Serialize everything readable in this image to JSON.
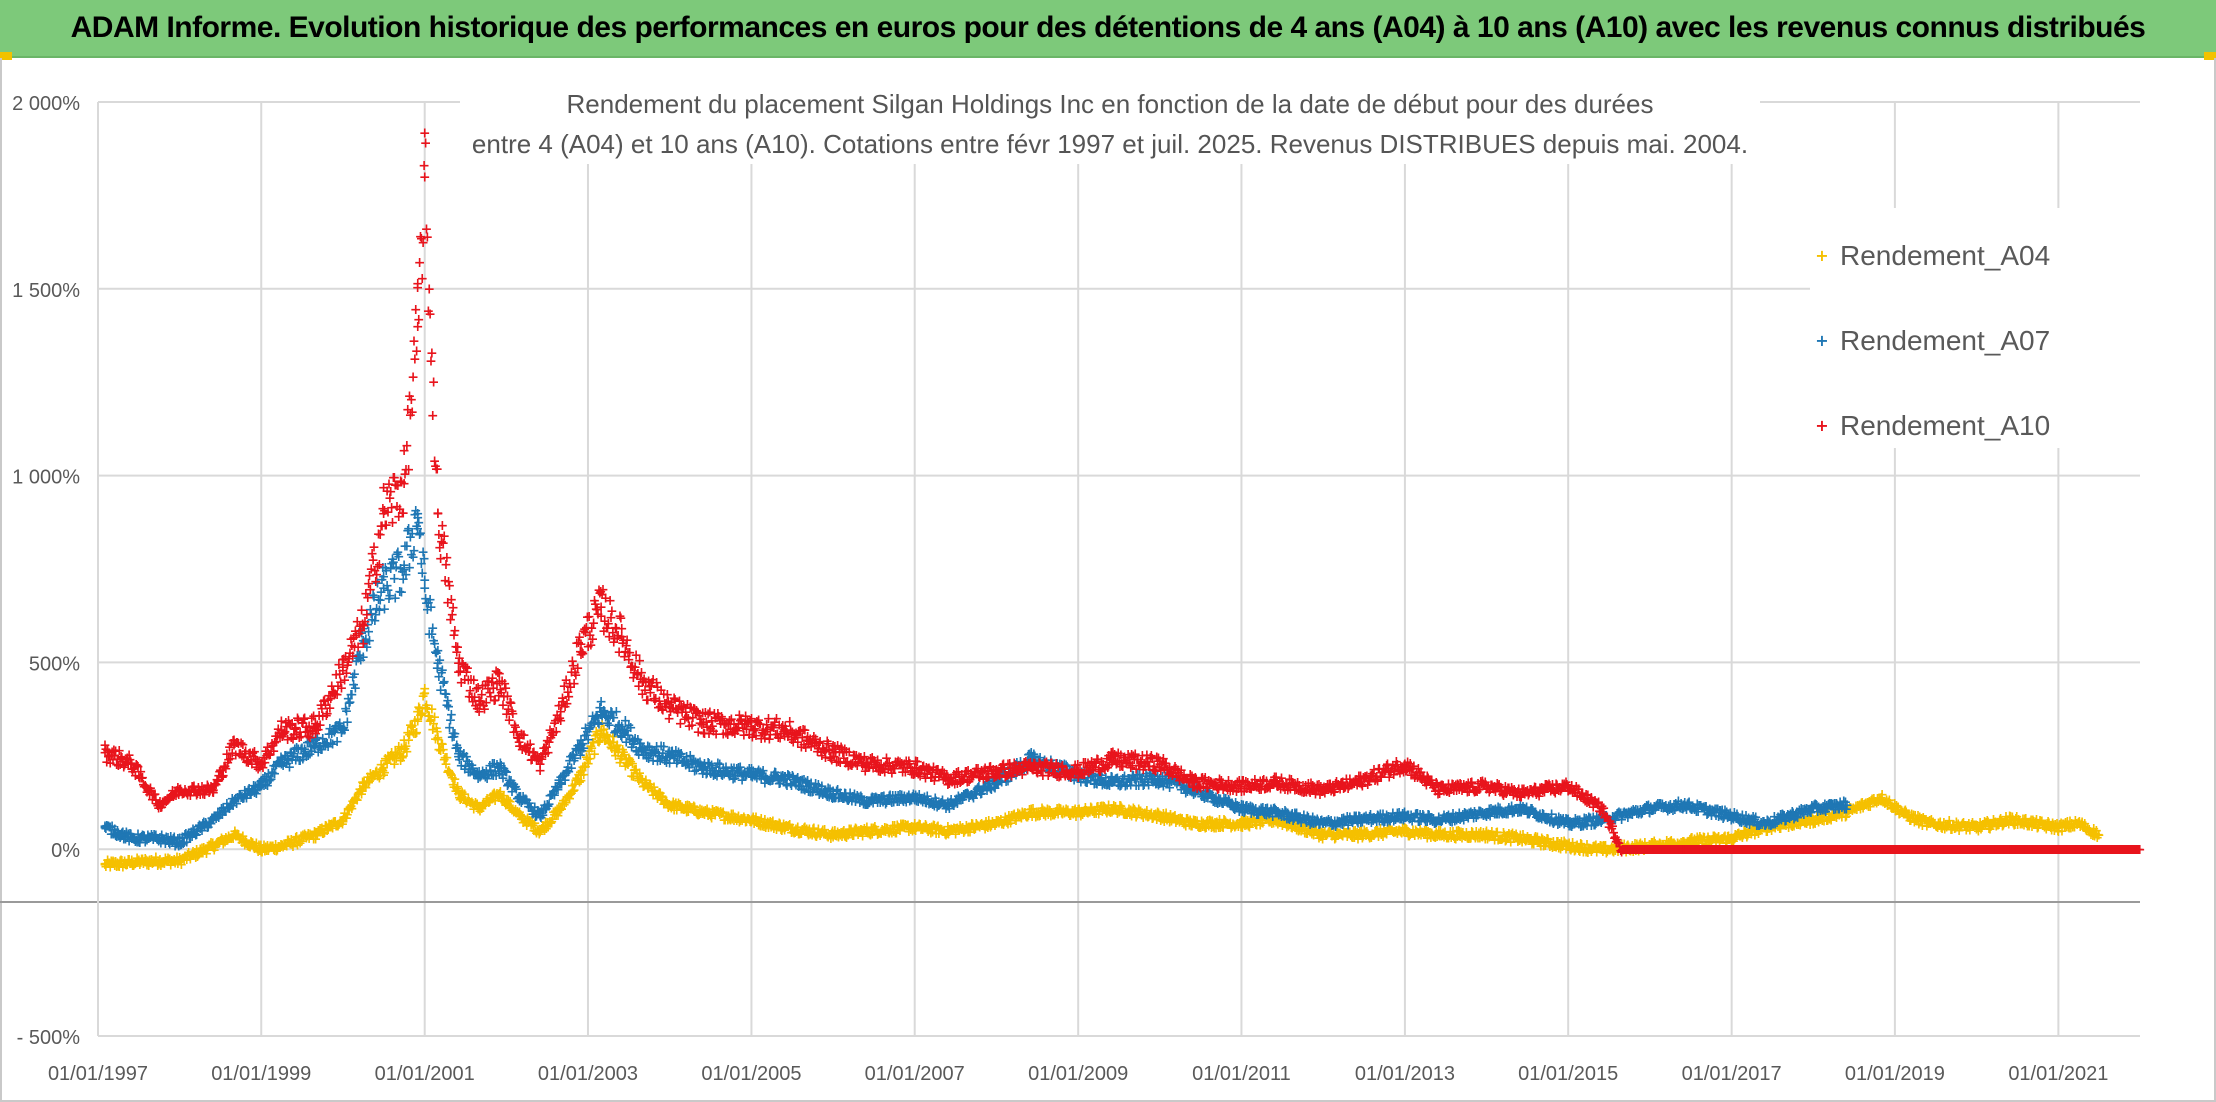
{
  "banner": {
    "title": "ADAM Informe. Evolution historique des performances en euros pour des détentions de 4 ans (A04) à 10 ans (A10) avec les revenus connus distribués"
  },
  "colors": {
    "banner_green": "#7dc97a",
    "A04": "#f5c000",
    "A07": "#1f77b4",
    "A10": "#e8141c",
    "grid": "#d9d9d9",
    "axis_text": "#595959"
  },
  "chart_data": {
    "type": "scatter",
    "title_line1": "Rendement du placement Silgan Holdings Inc en fonction de la date de début pour des durées",
    "title_line2": "entre 4 (A04) et 10 ans (A10). Cotations entre févr 1997 et juil. 2025. Revenus DISTRIBUES depuis mai. 2004.",
    "xlabel": "",
    "ylabel": "",
    "x_range": [
      "1997-01-01",
      "2022-01-01"
    ],
    "ylim": [
      -500,
      2000
    ],
    "y_ticks": [
      2000,
      1500,
      1000,
      500,
      0,
      -500
    ],
    "y_tick_labels": [
      "2 000%",
      "1 500%",
      "1 000%",
      "500%",
      "0%",
      "- 500%"
    ],
    "x_tick_labels": [
      "01/01/1997",
      "01/01/1999",
      "01/01/2001",
      "01/01/2003",
      "01/01/2005",
      "01/01/2007",
      "01/01/2009",
      "01/01/2011",
      "01/01/2013",
      "01/01/2015",
      "01/01/2017",
      "01/01/2019",
      "01/01/2021"
    ],
    "grid": true,
    "legend_position": "top-right",
    "marker": "+",
    "series": [
      {
        "name": "Rendement_A04",
        "color": "#f5c000",
        "points": [
          [
            "1997-02-01",
            -40
          ],
          [
            "1997-06-01",
            -35
          ],
          [
            "1997-10-01",
            -30
          ],
          [
            "1998-01-01",
            -30
          ],
          [
            "1998-06-01",
            10
          ],
          [
            "1998-09-01",
            40
          ],
          [
            "1999-01-01",
            0
          ],
          [
            "1999-04-01",
            10
          ],
          [
            "1999-09-01",
            40
          ],
          [
            "2000-01-01",
            80
          ],
          [
            "2000-04-01",
            170
          ],
          [
            "2000-07-01",
            220
          ],
          [
            "2000-10-01",
            270
          ],
          [
            "2000-12-01",
            350
          ],
          [
            "2001-01-01",
            420
          ],
          [
            "2001-03-01",
            300
          ],
          [
            "2001-06-01",
            150
          ],
          [
            "2001-09-01",
            110
          ],
          [
            "2001-12-01",
            150
          ],
          [
            "2002-03-01",
            90
          ],
          [
            "2002-06-01",
            50
          ],
          [
            "2002-09-01",
            110
          ],
          [
            "2002-12-01",
            200
          ],
          [
            "2003-03-01",
            320
          ],
          [
            "2003-06-01",
            250
          ],
          [
            "2003-09-01",
            180
          ],
          [
            "2004-01-01",
            120
          ],
          [
            "2004-06-01",
            100
          ],
          [
            "2005-01-01",
            80
          ],
          [
            "2005-06-01",
            60
          ],
          [
            "2006-01-01",
            40
          ],
          [
            "2006-06-01",
            50
          ],
          [
            "2007-01-01",
            60
          ],
          [
            "2007-06-01",
            50
          ],
          [
            "2008-01-01",
            70
          ],
          [
            "2008-06-01",
            100
          ],
          [
            "2009-01-01",
            100
          ],
          [
            "2009-06-01",
            110
          ],
          [
            "2010-01-01",
            90
          ],
          [
            "2010-06-01",
            70
          ],
          [
            "2011-01-01",
            70
          ],
          [
            "2011-06-01",
            80
          ],
          [
            "2012-01-01",
            40
          ],
          [
            "2012-06-01",
            40
          ],
          [
            "2013-01-01",
            50
          ],
          [
            "2013-06-01",
            40
          ],
          [
            "2014-01-01",
            40
          ],
          [
            "2014-06-01",
            30
          ],
          [
            "2015-01-01",
            10
          ],
          [
            "2015-06-01",
            0
          ],
          [
            "2016-01-01",
            10
          ],
          [
            "2016-06-01",
            20
          ],
          [
            "2017-01-01",
            30
          ],
          [
            "2017-06-01",
            60
          ],
          [
            "2018-01-01",
            80
          ],
          [
            "2018-06-01",
            100
          ],
          [
            "2018-11-01",
            140
          ],
          [
            "2019-03-01",
            90
          ],
          [
            "2019-06-01",
            70
          ],
          [
            "2020-01-01",
            60
          ],
          [
            "2020-06-01",
            80
          ],
          [
            "2021-01-01",
            60
          ],
          [
            "2021-04-01",
            70
          ],
          [
            "2021-07-01",
            40
          ]
        ]
      },
      {
        "name": "Rendement_A07",
        "color": "#1f77b4",
        "points": [
          [
            "1997-02-01",
            60
          ],
          [
            "1997-06-01",
            30
          ],
          [
            "1997-10-01",
            30
          ],
          [
            "1998-01-01",
            20
          ],
          [
            "1998-06-01",
            80
          ],
          [
            "1998-09-01",
            130
          ],
          [
            "1999-01-01",
            170
          ],
          [
            "1999-04-01",
            230
          ],
          [
            "1999-09-01",
            280
          ],
          [
            "2000-01-01",
            320
          ],
          [
            "2000-04-01",
            560
          ],
          [
            "2000-07-01",
            700
          ],
          [
            "2000-10-01",
            750
          ],
          [
            "2000-12-01",
            900
          ],
          [
            "2001-01-01",
            700
          ],
          [
            "2001-03-01",
            500
          ],
          [
            "2001-06-01",
            250
          ],
          [
            "2001-09-01",
            200
          ],
          [
            "2001-12-01",
            220
          ],
          [
            "2002-03-01",
            140
          ],
          [
            "2002-06-01",
            90
          ],
          [
            "2002-09-01",
            180
          ],
          [
            "2002-12-01",
            280
          ],
          [
            "2003-03-01",
            370
          ],
          [
            "2003-06-01",
            330
          ],
          [
            "2003-09-01",
            270
          ],
          [
            "2004-01-01",
            250
          ],
          [
            "2004-06-01",
            220
          ],
          [
            "2005-01-01",
            200
          ],
          [
            "2005-06-01",
            190
          ],
          [
            "2006-01-01",
            150
          ],
          [
            "2006-06-01",
            130
          ],
          [
            "2007-01-01",
            140
          ],
          [
            "2007-06-01",
            120
          ],
          [
            "2008-01-01",
            180
          ],
          [
            "2008-06-01",
            240
          ],
          [
            "2009-01-01",
            200
          ],
          [
            "2009-06-01",
            180
          ],
          [
            "2010-01-01",
            190
          ],
          [
            "2010-06-01",
            160
          ],
          [
            "2011-01-01",
            110
          ],
          [
            "2011-06-01",
            100
          ],
          [
            "2012-01-01",
            70
          ],
          [
            "2012-06-01",
            80
          ],
          [
            "2013-01-01",
            90
          ],
          [
            "2013-06-01",
            80
          ],
          [
            "2014-01-01",
            100
          ],
          [
            "2014-06-01",
            110
          ],
          [
            "2015-01-01",
            70
          ],
          [
            "2015-06-01",
            80
          ],
          [
            "2016-01-01",
            110
          ],
          [
            "2016-06-01",
            120
          ],
          [
            "2017-01-01",
            90
          ],
          [
            "2017-06-01",
            70
          ],
          [
            "2018-01-01",
            110
          ],
          [
            "2018-06-01",
            120
          ]
        ]
      },
      {
        "name": "Rendement_A10",
        "color": "#e8141c",
        "points": [
          [
            "1997-02-01",
            260
          ],
          [
            "1997-06-01",
            230
          ],
          [
            "1997-10-01",
            120
          ],
          [
            "1998-01-01",
            160
          ],
          [
            "1998-06-01",
            160
          ],
          [
            "1998-09-01",
            280
          ],
          [
            "1999-01-01",
            230
          ],
          [
            "1999-04-01",
            320
          ],
          [
            "1999-09-01",
            330
          ],
          [
            "2000-01-01",
            480
          ],
          [
            "2000-04-01",
            600
          ],
          [
            "2000-07-01",
            900
          ],
          [
            "2000-10-01",
            980
          ],
          [
            "2000-12-01",
            1400
          ],
          [
            "2001-01-01",
            1800
          ],
          [
            "2001-03-01",
            900
          ],
          [
            "2001-06-01",
            500
          ],
          [
            "2001-09-01",
            400
          ],
          [
            "2001-12-01",
            450
          ],
          [
            "2002-03-01",
            300
          ],
          [
            "2002-06-01",
            230
          ],
          [
            "2002-09-01",
            370
          ],
          [
            "2002-12-01",
            550
          ],
          [
            "2003-03-01",
            650
          ],
          [
            "2003-06-01",
            570
          ],
          [
            "2003-09-01",
            450
          ],
          [
            "2004-01-01",
            380
          ],
          [
            "2004-06-01",
            340
          ],
          [
            "2005-01-01",
            330
          ],
          [
            "2005-06-01",
            320
          ],
          [
            "2006-01-01",
            260
          ],
          [
            "2006-06-01",
            230
          ],
          [
            "2007-01-01",
            220
          ],
          [
            "2007-06-01",
            190
          ],
          [
            "2008-01-01",
            210
          ],
          [
            "2008-06-01",
            220
          ],
          [
            "2009-01-01",
            210
          ],
          [
            "2009-06-01",
            240
          ],
          [
            "2010-01-01",
            230
          ],
          [
            "2010-06-01",
            180
          ],
          [
            "2011-01-01",
            170
          ],
          [
            "2011-06-01",
            180
          ],
          [
            "2012-01-01",
            160
          ],
          [
            "2012-06-01",
            180
          ],
          [
            "2013-01-01",
            230
          ],
          [
            "2013-06-01",
            160
          ],
          [
            "2014-01-01",
            170
          ],
          [
            "2014-06-01",
            150
          ],
          [
            "2015-01-01",
            170
          ],
          [
            "2015-06-01",
            110
          ],
          [
            "2015-09-01",
            0
          ],
          [
            "2016-06-01",
            0
          ],
          [
            "2017-06-01",
            0
          ],
          [
            "2018-06-01",
            0
          ],
          [
            "2019-06-01",
            0
          ],
          [
            "2020-06-01",
            0
          ],
          [
            "2021-06-01",
            0
          ],
          [
            "2021-12-31",
            0
          ]
        ]
      }
    ]
  }
}
